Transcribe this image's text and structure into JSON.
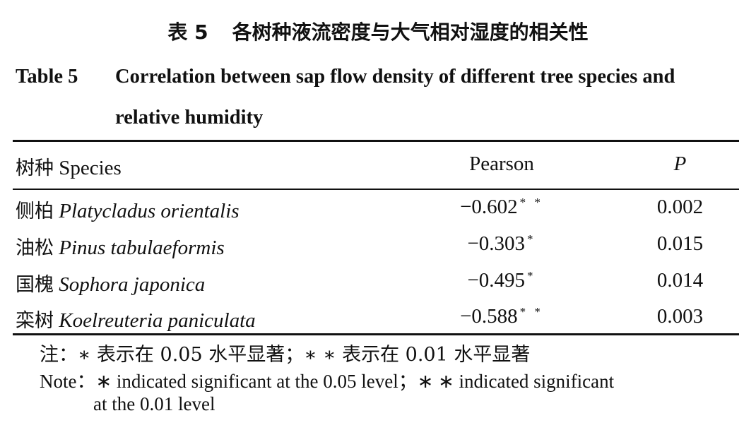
{
  "caption": {
    "cn_number": "表 5",
    "cn_title": "各树种液流密度与大气相对湿度的相关性",
    "en_number": "Table 5",
    "en_title": "Correlation between sap flow density of different tree species and relative humidity"
  },
  "table": {
    "headers": {
      "species_cn": "树种",
      "species_en": "Species",
      "pearson": "Pearson",
      "p": "P"
    },
    "rows": [
      {
        "cn": "侧柏",
        "latin": "Platycladus orientalis",
        "pearson": "−0.602",
        "sig": "* *",
        "p": "0.002"
      },
      {
        "cn": "油松",
        "latin": "Pinus tabulaeformis",
        "pearson": "−0.303",
        "sig": "*",
        "p": "0.015"
      },
      {
        "cn": "国槐",
        "latin": "Sophora japonica",
        "pearson": "−0.495",
        "sig": "*",
        "p": "0.014"
      },
      {
        "cn": "栾树",
        "latin": "Koelreuteria paniculata",
        "pearson": "−0.588",
        "sig": "* *",
        "p": "0.003"
      }
    ]
  },
  "notes": {
    "cn": "注：∗ 表示在 0.05 水平显著；∗ ∗ 表示在 0.01 水平显著",
    "en_line1": "Note：∗  indicated significant at the 0.05 level；∗  ∗  indicated significant",
    "en_line2": "at the 0.01 level"
  }
}
